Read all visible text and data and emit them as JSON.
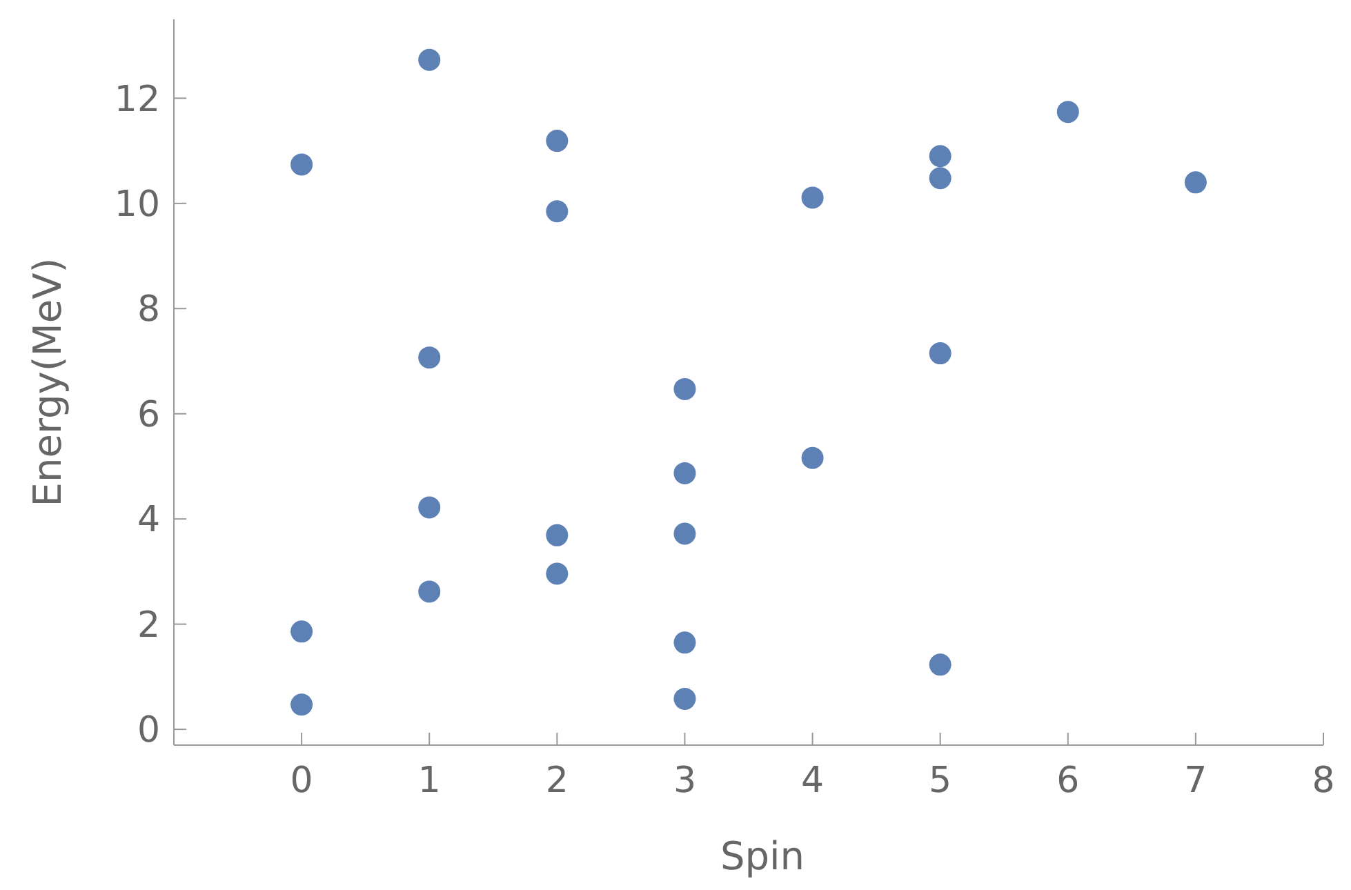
{
  "chart_data": {
    "type": "scatter",
    "xlabel": "Spin",
    "ylabel": "Energy(MeV)",
    "x": [
      0,
      0,
      0,
      1,
      1,
      1,
      1,
      2,
      2,
      2,
      2,
      3,
      3,
      3,
      3,
      3,
      4,
      4,
      5,
      5,
      5,
      5,
      6,
      7
    ],
    "series": [
      {
        "color": "#5e81b5",
        "values": [
          10.74,
          1.86,
          0.47,
          12.73,
          7.07,
          4.22,
          2.62,
          11.19,
          9.85,
          3.69,
          2.96,
          6.47,
          4.87,
          3.72,
          1.65,
          0.58,
          10.11,
          5.16,
          10.9,
          10.48,
          7.15,
          1.23,
          11.74,
          10.4
        ]
      }
    ],
    "xlim": [
      -1,
      8
    ],
    "xticks": [
      0,
      1,
      2,
      3,
      4,
      5,
      6,
      7,
      8
    ],
    "ylim": [
      -0.3,
      13.5
    ],
    "yticks": [
      0,
      2,
      4,
      6,
      8,
      10,
      12
    ],
    "marker": "circle",
    "grid": false
  }
}
